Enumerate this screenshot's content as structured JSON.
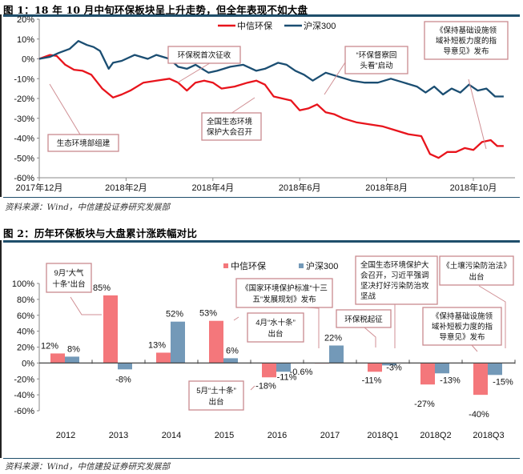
{
  "figure1": {
    "title": "图 1：18 年 10 月中旬环保板块呈上升走势，但全年表现不如大盘",
    "source": "资料来源：Wind，中信建投证券研究发展部",
    "chart_data": {
      "type": "line",
      "title": "",
      "xlabel": "",
      "ylabel": "",
      "ylim": [
        -0.6,
        0.2
      ],
      "y_ticks": [
        "20%",
        "10%",
        "0%",
        "-10%",
        "-20%",
        "-30%",
        "-40%",
        "-50%",
        "-60%"
      ],
      "x_ticks": [
        "2017年12月",
        "2018年2月",
        "2018年4月",
        "2018年6月",
        "2018年8月",
        "2018年10月"
      ],
      "x_range_months": [
        0,
        10.7
      ],
      "legend": {
        "placement": "top-center",
        "entries": [
          "中信环保",
          "沪深300"
        ]
      },
      "colors": {
        "中信环保": "#e8141c",
        "沪深300": "#1b4e72"
      },
      "series": [
        {
          "name": "中信环保",
          "x_months": [
            0,
            0.25,
            0.4,
            0.6,
            0.8,
            1.0,
            1.2,
            1.45,
            1.7,
            1.9,
            2.1,
            2.4,
            2.7,
            3.0,
            3.2,
            3.4,
            3.6,
            3.8,
            4.0,
            4.2,
            4.5,
            4.8,
            5.0,
            5.2,
            5.4,
            5.6,
            5.8,
            6.0,
            6.2,
            6.4,
            6.6,
            6.8,
            7.0,
            7.3,
            7.6,
            7.9,
            8.2,
            8.5,
            8.8,
            9.0,
            9.2,
            9.4,
            9.6,
            9.8,
            10.0,
            10.2,
            10.4,
            10.55,
            10.7
          ],
          "values": [
            0,
            0.02,
            0.015,
            -0.03,
            -0.055,
            -0.06,
            -0.08,
            -0.15,
            -0.195,
            -0.18,
            -0.16,
            -0.12,
            -0.11,
            -0.1,
            -0.12,
            -0.16,
            -0.12,
            -0.11,
            -0.12,
            -0.15,
            -0.14,
            -0.12,
            -0.11,
            -0.13,
            -0.19,
            -0.2,
            -0.21,
            -0.26,
            -0.25,
            -0.23,
            -0.27,
            -0.28,
            -0.3,
            -0.32,
            -0.33,
            -0.34,
            -0.36,
            -0.38,
            -0.39,
            -0.48,
            -0.5,
            -0.47,
            -0.47,
            -0.45,
            -0.46,
            -0.42,
            -0.41,
            -0.44,
            -0.44
          ]
        },
        {
          "name": "沪深300",
          "x_months": [
            0,
            0.25,
            0.45,
            0.7,
            0.9,
            1.1,
            1.25,
            1.4,
            1.6,
            1.7,
            1.9,
            2.2,
            2.5,
            2.7,
            3.0,
            3.2,
            3.4,
            3.6,
            3.9,
            4.1,
            4.4,
            4.7,
            5.0,
            5.2,
            5.5,
            5.7,
            5.9,
            6.1,
            6.3,
            6.6,
            6.9,
            7.2,
            7.5,
            7.8,
            8.1,
            8.4,
            8.7,
            8.9,
            9.1,
            9.3,
            9.5,
            9.7,
            9.9,
            10.1,
            10.3,
            10.5,
            10.7
          ],
          "values": [
            0,
            0.01,
            0.03,
            0.05,
            0.09,
            0.07,
            0.06,
            0.04,
            -0.05,
            -0.02,
            -0.01,
            0.02,
            0.0,
            0.02,
            0.0,
            -0.04,
            -0.05,
            -0.03,
            -0.07,
            -0.06,
            -0.04,
            -0.03,
            -0.06,
            -0.05,
            -0.02,
            -0.03,
            -0.06,
            -0.08,
            -0.11,
            -0.07,
            -0.09,
            -0.11,
            -0.12,
            -0.12,
            -0.1,
            -0.12,
            -0.14,
            -0.17,
            -0.14,
            -0.18,
            -0.15,
            -0.17,
            -0.13,
            -0.16,
            -0.15,
            -0.19,
            -0.19
          ]
        }
      ],
      "annotations": [
        {
          "lines": [
            "生态环境部组建"
          ]
        },
        {
          "lines": [
            "环保税首次征收"
          ]
        },
        {
          "lines": [
            "全国生态环境",
            "保护大会召开"
          ]
        },
        {
          "lines": [
            "“环保督察回",
            "头看”启动"
          ]
        },
        {
          "lines": [
            "《保持基础设施领",
            "域补短板力度的指",
            "导意见》发布"
          ]
        }
      ]
    }
  },
  "figure2": {
    "title": "图 2：历年环保板块与大盘累计涨跌幅对比",
    "source": "资料来源：Wind，中信建投证券研究发展部",
    "chart_data": {
      "type": "bar",
      "title": "",
      "xlabel": "",
      "ylabel": "",
      "ylim": [
        -0.6,
        1.0
      ],
      "y_ticks": [
        "100%",
        "80%",
        "60%",
        "40%",
        "20%",
        "0%",
        "-20%",
        "-40%",
        "-60%"
      ],
      "categories": [
        "2012",
        "2013",
        "2014",
        "2015",
        "2016",
        "2017",
        "2018Q1",
        "2018Q2",
        "2018Q3"
      ],
      "legend": {
        "placement": "top-center",
        "entries": [
          "中信环保",
          "沪深300"
        ]
      },
      "colors": {
        "中信环保": "#f4777b",
        "沪深300": "#7399b8"
      },
      "series": [
        {
          "name": "中信环保",
          "values": [
            0.12,
            0.85,
            0.13,
            0.53,
            -0.18,
            -0.006,
            -0.11,
            -0.27,
            -0.4
          ],
          "labels": [
            "12%",
            "85%",
            "13%",
            "53%",
            "-18%",
            "-0.6%",
            "-11%",
            "-27%",
            "-40%"
          ]
        },
        {
          "name": "沪深300",
          "values": [
            0.08,
            -0.08,
            0.52,
            0.06,
            -0.11,
            0.22,
            -0.03,
            -0.13,
            -0.15
          ],
          "labels": [
            "8%",
            "-8%",
            "52%",
            "6%",
            "-11%",
            "22%",
            "-3%",
            "-13%",
            "-15%"
          ]
        }
      ],
      "annotations": [
        {
          "lines": [
            "9月“大气",
            "十条”出台"
          ]
        },
        {
          "lines": [
            "《国家环境保护标准“十三",
            "五”发展规划》发布"
          ]
        },
        {
          "lines": [
            "4月“水十条”",
            "出台"
          ]
        },
        {
          "lines": [
            "5月“土十条”",
            "出台"
          ]
        },
        {
          "lines": [
            "环保税起征"
          ]
        },
        {
          "lines": [
            "全国生态环境保护大",
            "会召开，习近平强调",
            "坚决打好污染防治攻",
            "坚战"
          ]
        },
        {
          "lines": [
            "《土壤污染防治法》",
            "出台"
          ]
        },
        {
          "lines": [
            "《保持基础设施领",
            "域补短板力度的指",
            "导意见》发布"
          ]
        }
      ]
    }
  }
}
